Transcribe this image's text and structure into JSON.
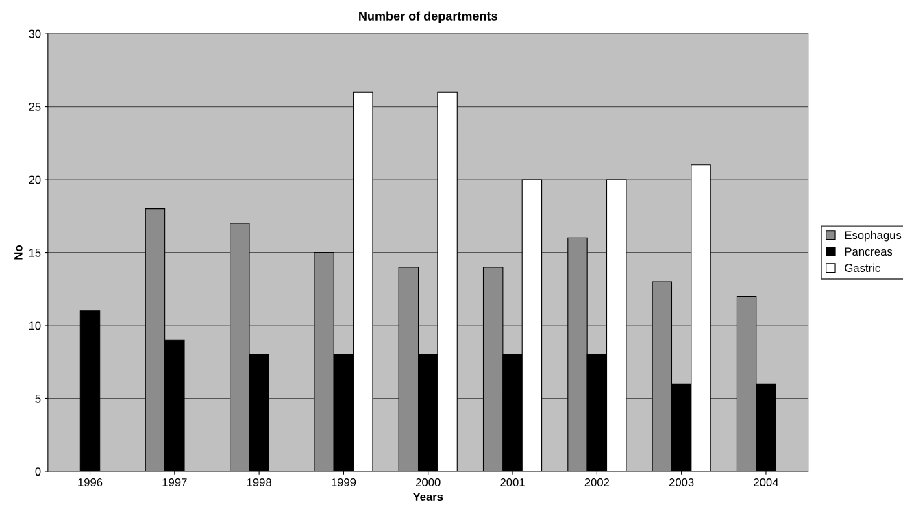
{
  "chart_data": {
    "type": "bar",
    "title": "Number of departments",
    "xlabel": "Years",
    "ylabel": "No",
    "categories": [
      "1996",
      "1997",
      "1998",
      "1999",
      "2000",
      "2001",
      "2002",
      "2003",
      "2004"
    ],
    "series": [
      {
        "name": "Esophagus",
        "color": "#8c8c8c",
        "values": [
          null,
          18,
          17,
          15,
          14,
          14,
          16,
          13,
          12
        ]
      },
      {
        "name": "Pancreas",
        "color": "#000000",
        "values": [
          11,
          9,
          8,
          8,
          8,
          8,
          8,
          6,
          6
        ]
      },
      {
        "name": "Gastric",
        "color": "#ffffff",
        "values": [
          null,
          null,
          null,
          26,
          26,
          20,
          20,
          21,
          null
        ]
      }
    ],
    "ylim": [
      0,
      30
    ],
    "yticks": [
      0,
      5,
      10,
      15,
      20,
      25,
      30
    ],
    "grid": "y",
    "legend": "right"
  }
}
